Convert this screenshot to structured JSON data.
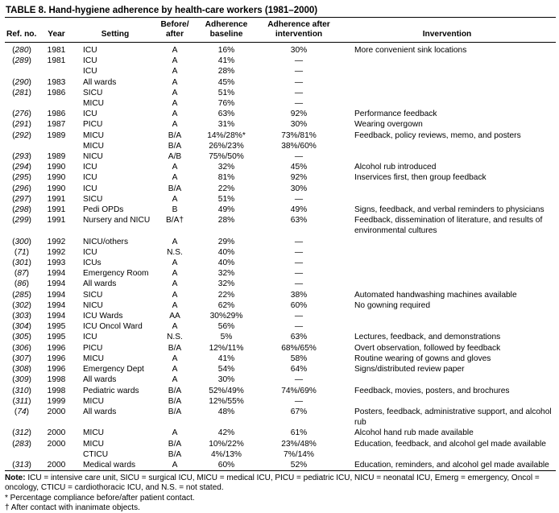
{
  "title": "TABLE 8. Hand-hygiene adherence by health-care workers (1981–2000)",
  "headers": {
    "ref": "Ref. no.",
    "year": "Year",
    "setting": "Setting",
    "before_after": "Before/ after",
    "baseline": "Adherence baseline",
    "after": "Adherence after intervention",
    "intervention": "Invervention"
  },
  "rows": [
    {
      "ref": "280",
      "year": "1981",
      "setting": "ICU",
      "ba": "A",
      "base": "16%",
      "after": "30%",
      "int": "More convenient sink locations"
    },
    {
      "ref": "289",
      "year": "1981",
      "setting": "ICU",
      "ba": "A",
      "base": "41%",
      "after": "—",
      "int": ""
    },
    {
      "ref": "",
      "year": "",
      "setting": "ICU",
      "ba": "A",
      "base": "28%",
      "after": "—",
      "int": ""
    },
    {
      "ref": "290",
      "year": "1983",
      "setting": "All wards",
      "ba": "A",
      "base": "45%",
      "after": "—",
      "int": ""
    },
    {
      "ref": "281",
      "year": "1986",
      "setting": "SICU",
      "ba": "A",
      "base": "51%",
      "after": "—",
      "int": ""
    },
    {
      "ref": "",
      "year": "",
      "setting": "MICU",
      "ba": "A",
      "base": "76%",
      "after": "—",
      "int": ""
    },
    {
      "ref": "276",
      "year": "1986",
      "setting": "ICU",
      "ba": "A",
      "base": "63%",
      "after": "92%",
      "int": "Performance feedback"
    },
    {
      "ref": "291",
      "year": "1987",
      "setting": "PICU",
      "ba": "A",
      "base": "31%",
      "after": "30%",
      "int": "Wearing overgown"
    },
    {
      "ref": "292",
      "year": "1989",
      "setting": "MICU",
      "ba": "B/A",
      "base": "14%/28%*",
      "after": "73%/81%",
      "int": "Feedback, policy reviews, memo, and posters"
    },
    {
      "ref": "",
      "year": "",
      "setting": "MICU",
      "ba": "B/A",
      "base": "26%/23%",
      "after": "38%/60%",
      "int": ""
    },
    {
      "ref": "293",
      "year": "1989",
      "setting": "NICU",
      "ba": "A/B",
      "base": "75%/50%",
      "after": "—",
      "int": ""
    },
    {
      "ref": "294",
      "year": "1990",
      "setting": "ICU",
      "ba": "A",
      "base": "32%",
      "after": "45%",
      "int": "Alcohol rub introduced"
    },
    {
      "ref": "295",
      "year": "1990",
      "setting": "ICU",
      "ba": "A",
      "base": "81%",
      "after": "92%",
      "int": "Inservices first, then group feedback"
    },
    {
      "ref": "296",
      "year": "1990",
      "setting": "ICU",
      "ba": "B/A",
      "base": "22%",
      "after": "30%",
      "int": ""
    },
    {
      "ref": "297",
      "year": "1991",
      "setting": "SICU",
      "ba": "A",
      "base": "51%",
      "after": "—",
      "int": ""
    },
    {
      "ref": "298",
      "year": "1991",
      "setting": "Pedi OPDs",
      "ba": "B",
      "base": "49%",
      "after": "49%",
      "int": "Signs, feedback, and verbal reminders to physicians"
    },
    {
      "ref": "299",
      "year": "1991",
      "setting": "Nursery and NICU",
      "ba": "B/A†",
      "base": "28%",
      "after": "63%",
      "int": "Feedback, dissemination of literature, and results of environmental cultures"
    },
    {
      "ref": "300",
      "year": "1992",
      "setting": "NICU/others",
      "ba": "A",
      "base": "29%",
      "after": "—",
      "int": ""
    },
    {
      "ref": "71",
      "year": "1992",
      "setting": "ICU",
      "ba": "N.S.",
      "base": "40%",
      "after": "—",
      "int": ""
    },
    {
      "ref": "301",
      "year": "1993",
      "setting": "ICUs",
      "ba": "A",
      "base": "40%",
      "after": "—",
      "int": ""
    },
    {
      "ref": "87",
      "year": "1994",
      "setting": "Emergency Room",
      "ba": "A",
      "base": "32%",
      "after": "—",
      "int": ""
    },
    {
      "ref": "86",
      "year": "1994",
      "setting": "All wards",
      "ba": "A",
      "base": "32%",
      "after": "—",
      "int": ""
    },
    {
      "ref": "285",
      "year": "1994",
      "setting": "SICU",
      "ba": "A",
      "base": "22%",
      "after": "38%",
      "int": "Automated handwashing machines available"
    },
    {
      "ref": "302",
      "year": "1994",
      "setting": "NICU",
      "ba": "A",
      "base": "62%",
      "after": "60%",
      "int": "No gowning required"
    },
    {
      "ref": "303",
      "year": "1994",
      "setting": "ICU Wards",
      "ba": "AA",
      "base": "30%29%",
      "after": "—",
      "int": ""
    },
    {
      "ref": "304",
      "year": "1995",
      "setting": "ICU Oncol Ward",
      "ba": "A",
      "base": "56%",
      "after": "—",
      "int": ""
    },
    {
      "ref": "305",
      "year": "1995",
      "setting": "ICU",
      "ba": "N.S.",
      "base": "5%",
      "after": "63%",
      "int": "Lectures, feedback, and demonstrations"
    },
    {
      "ref": "306",
      "year": "1996",
      "setting": "PICU",
      "ba": "B/A",
      "base": "12%/11%",
      "after": "68%/65%",
      "int": "Overt observation, followed by feedback"
    },
    {
      "ref": "307",
      "year": "1996",
      "setting": "MICU",
      "ba": "A",
      "base": "41%",
      "after": "58%",
      "int": "Routine wearing of gowns and gloves"
    },
    {
      "ref": "308",
      "year": "1996",
      "setting": "Emergency Dept",
      "ba": "A",
      "base": "54%",
      "after": "64%",
      "int": "Signs/distributed review paper"
    },
    {
      "ref": "309",
      "year": "1998",
      "setting": "All wards",
      "ba": "A",
      "base": "30%",
      "after": "—",
      "int": ""
    },
    {
      "ref": "310",
      "year": "1998",
      "setting": "Pediatric wards",
      "ba": "B/A",
      "base": "52%/49%",
      "after": "74%/69%",
      "int": "Feedback, movies, posters, and brochures"
    },
    {
      "ref": "311",
      "year": "1999",
      "setting": "MICU",
      "ba": "B/A",
      "base": "12%/55%",
      "after": "—",
      "int": ""
    },
    {
      "ref": "74",
      "year": "2000",
      "setting": "All wards",
      "ba": "B/A",
      "base": "48%",
      "after": "67%",
      "int": "Posters, feedback, administrative support, and alcohol rub"
    },
    {
      "ref": "312",
      "year": "2000",
      "setting": "MICU",
      "ba": "A",
      "base": "42%",
      "after": "61%",
      "int": "Alcohol hand rub made available"
    },
    {
      "ref": "283",
      "year": "2000",
      "setting": "MICU",
      "ba": "B/A",
      "base": "10%/22%",
      "after": "23%/48%",
      "int": "Education, feedback, and alcohol gel made available"
    },
    {
      "ref": "",
      "year": "",
      "setting": "CTICU",
      "ba": "B/A",
      "base": "4%/13%",
      "after": "7%/14%",
      "int": ""
    },
    {
      "ref": "313",
      "year": "2000",
      "setting": "Medical wards",
      "ba": "A",
      "base": "60%",
      "after": "52%",
      "int": "Education, reminders, and alcohol gel made available"
    }
  ],
  "notes": {
    "note_label": "Note:",
    "note_text": "ICU = intensive care unit, SICU = surgical ICU, MICU = medical ICU, PICU = pediatric ICU, NICU = neonatal ICU, Emerg = emergency, Oncol = oncology, CTICU = cardiothoracic ICU, and N.S. = not stated.",
    "footnote_star": "* Percentage compliance before/after patient contact.",
    "footnote_dagger": "† After contact with inanimate objects."
  }
}
